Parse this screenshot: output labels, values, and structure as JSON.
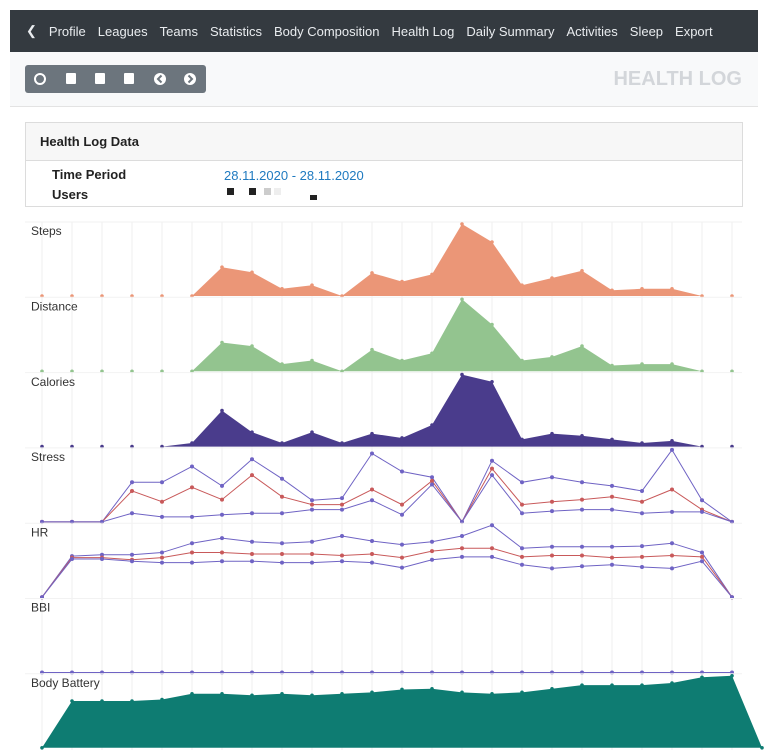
{
  "nav": {
    "items": [
      "Profile",
      "Leagues",
      "Teams",
      "Statistics",
      "Body Composition",
      "Health Log",
      "Daily Summary",
      "Activities",
      "Sleep",
      "Export"
    ]
  },
  "header": {
    "title": "HEALTH LOG"
  },
  "card": {
    "title": "Health Log Data",
    "time_period_label": "Time Period",
    "time_period_value": "28.11.2020 - 28.11.2020",
    "users_label": "Users"
  },
  "charts": [
    {
      "type": "area",
      "title": "Steps",
      "color": "#eb9677",
      "values": [
        0,
        0,
        0,
        0,
        0,
        0,
        40,
        33,
        10,
        15,
        0,
        32,
        20,
        30,
        100,
        75,
        15,
        25,
        35,
        8,
        10,
        10,
        0,
        0
      ]
    },
    {
      "type": "area",
      "title": "Distance",
      "color": "#93c48f",
      "values": [
        0,
        0,
        0,
        0,
        0,
        0,
        40,
        35,
        10,
        15,
        0,
        30,
        15,
        25,
        100,
        65,
        15,
        20,
        35,
        8,
        10,
        10,
        0,
        0
      ]
    },
    {
      "type": "area",
      "title": "Calories",
      "color": "#4a3c8c",
      "values": [
        0,
        0,
        0,
        0,
        0,
        5,
        50,
        20,
        5,
        20,
        5,
        18,
        12,
        30,
        100,
        90,
        10,
        18,
        15,
        10,
        5,
        8,
        0,
        0
      ]
    },
    {
      "type": "line",
      "title": "Stress",
      "series": [
        {
          "color": "#6f63c4",
          "values": [
            0,
            0,
            0,
            55,
            55,
            77,
            50,
            87,
            60,
            30,
            33,
            95,
            70,
            62,
            0,
            85,
            55,
            62,
            55,
            50,
            43,
            100,
            30,
            0
          ]
        },
        {
          "color": "#c8595a",
          "values": [
            0,
            0,
            0,
            43,
            28,
            48,
            31,
            65,
            35,
            24,
            24,
            45,
            24,
            57,
            0,
            74,
            24,
            28,
            31,
            35,
            28,
            45,
            17,
            0
          ]
        },
        {
          "color": "#6f63c4",
          "values": [
            0,
            0,
            0,
            12,
            7,
            7,
            10,
            12,
            12,
            17,
            17,
            30,
            10,
            52,
            0,
            65,
            12,
            15,
            17,
            17,
            12,
            14,
            14,
            0
          ]
        }
      ]
    },
    {
      "type": "line",
      "title": "HR",
      "series": [
        {
          "color": "#6f63c4",
          "values": [
            0,
            57,
            59,
            59,
            62,
            75,
            82,
            77,
            75,
            77,
            85,
            78,
            73,
            77,
            85,
            100,
            68,
            70,
            70,
            70,
            71,
            75,
            62,
            0
          ]
        },
        {
          "color": "#c8595a",
          "values": [
            0,
            55,
            55,
            52,
            55,
            62,
            62,
            60,
            60,
            60,
            58,
            60,
            55,
            64,
            68,
            68,
            56,
            58,
            58,
            55,
            56,
            58,
            56,
            0
          ]
        },
        {
          "color": "#6f63c4",
          "values": [
            0,
            53,
            53,
            50,
            48,
            48,
            50,
            50,
            48,
            48,
            50,
            48,
            41,
            52,
            56,
            56,
            45,
            40,
            43,
            45,
            42,
            40,
            50,
            0
          ]
        }
      ]
    },
    {
      "type": "line",
      "title": "BBI",
      "series": [
        {
          "color": "#6f63c4",
          "values": [
            0,
            0,
            0,
            0,
            0,
            0,
            0,
            0,
            0,
            0,
            0,
            0,
            0,
            0,
            0,
            0,
            0,
            0,
            0,
            0,
            0,
            0,
            0,
            0
          ]
        }
      ]
    },
    {
      "type": "area",
      "title": "Body Battery",
      "color": "#0e7c72",
      "values": [
        0,
        65,
        65,
        65,
        67,
        75,
        75,
        73,
        75,
        73,
        75,
        77,
        81,
        82,
        77,
        75,
        77,
        82,
        87,
        87,
        87,
        90,
        98,
        100,
        0
      ]
    }
  ]
}
